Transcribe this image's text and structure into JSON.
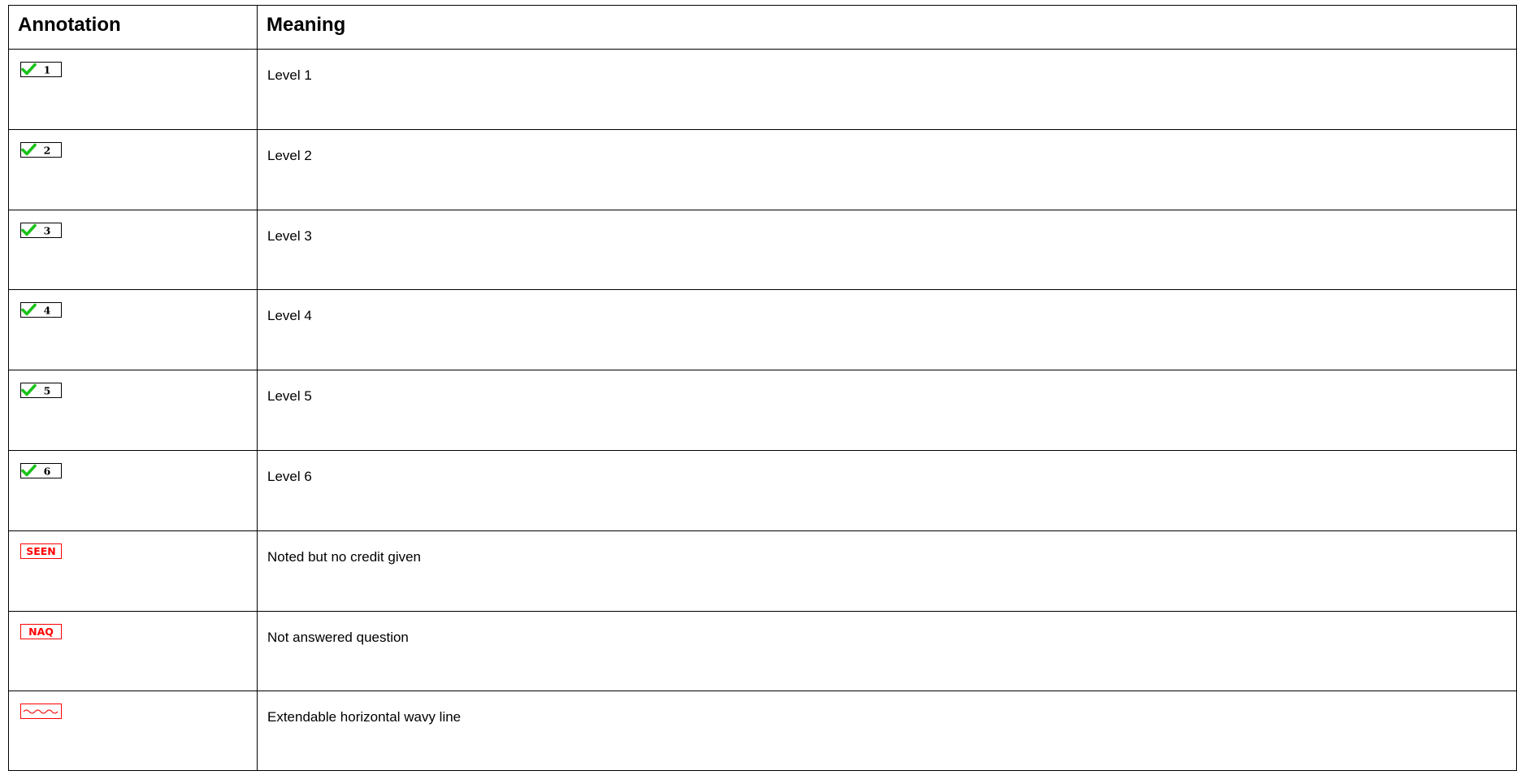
{
  "table": {
    "headers": {
      "annotation": "Annotation",
      "meaning": "Meaning"
    },
    "rows": [
      {
        "icon": "level-tick-icon",
        "icon_text": "1",
        "meaning": "Level 1"
      },
      {
        "icon": "level-tick-icon",
        "icon_text": "2",
        "meaning": "Level 2"
      },
      {
        "icon": "level-tick-icon",
        "icon_text": "3",
        "meaning": "Level 3"
      },
      {
        "icon": "level-tick-icon",
        "icon_text": "4",
        "meaning": "Level 4"
      },
      {
        "icon": "level-tick-icon",
        "icon_text": "5",
        "meaning": "Level 5"
      },
      {
        "icon": "level-tick-icon",
        "icon_text": "6",
        "meaning": "Level 6"
      },
      {
        "icon": "seen-stamp-icon",
        "icon_text": "SEEN",
        "meaning": "Noted but no credit given"
      },
      {
        "icon": "naq-stamp-icon",
        "icon_text": "NAQ",
        "meaning": "Not answered question"
      },
      {
        "icon": "wavy-line-icon",
        "icon_text": "",
        "meaning": "Extendable horizontal wavy line"
      }
    ]
  },
  "colors": {
    "tick_green": "#19c219",
    "stamp_red": "#ff0000",
    "border": "#000000"
  }
}
